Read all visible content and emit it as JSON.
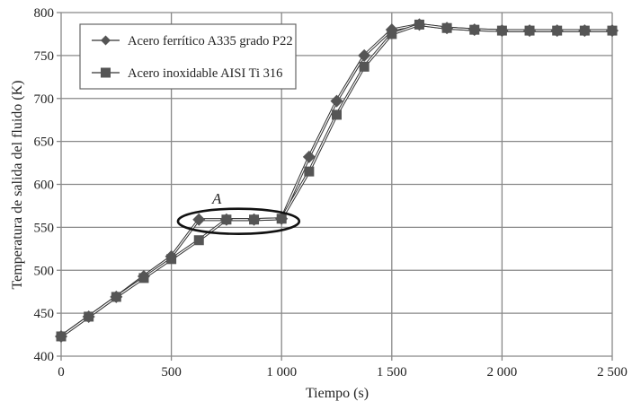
{
  "chart_data": {
    "type": "line",
    "title": "",
    "xlabel": "Tiempo (s)",
    "ylabel": "Temperatura de salida del fluido (K)",
    "xlim": [
      0,
      2500
    ],
    "ylim": [
      400,
      800
    ],
    "xticks": [
      0,
      500,
      1000,
      1500,
      2000,
      2500
    ],
    "xtick_labels": [
      "0",
      "500",
      "1 000",
      "1 500",
      "2 000",
      "2 500"
    ],
    "yticks": [
      400,
      450,
      500,
      550,
      600,
      650,
      700,
      750,
      800
    ],
    "ytick_labels": [
      "400",
      "450",
      "500",
      "550",
      "600",
      "650",
      "700",
      "750",
      "800"
    ],
    "grid": true,
    "legend_position": "upper left",
    "x": [
      0,
      125,
      250,
      375,
      500,
      625,
      750,
      875,
      1000,
      1125,
      1250,
      1375,
      1500,
      1625,
      1750,
      1875,
      2000,
      2125,
      2250,
      2375,
      2500
    ],
    "series": [
      {
        "name": "Acero ferrítico A335 grado P22",
        "marker": "diamond",
        "values": [
          423,
          446,
          469,
          493,
          516,
          559,
          559,
          559,
          560,
          632,
          697,
          750,
          780,
          786,
          782,
          780,
          779,
          779,
          779,
          779,
          779
        ]
      },
      {
        "name": "Acero inoxidable AISI Ti 316",
        "marker": "square",
        "values": [
          423,
          446,
          469,
          491,
          513,
          535,
          559,
          559,
          560,
          615,
          681,
          737,
          775,
          786,
          782,
          780,
          779,
          779,
          779,
          779,
          779
        ]
      }
    ],
    "annotations": [
      {
        "text": "A",
        "shape": "ellipse",
        "x_range": [
          530,
          1080
        ],
        "y_center": 557
      }
    ]
  },
  "legend": {
    "items": [
      {
        "label": "Acero ferrítico A335 grado P22"
      },
      {
        "label": "Acero inoxidable AISI Ti 316"
      }
    ]
  },
  "annotation_label": "A",
  "colors": {
    "series": "#555555",
    "grid": "#888888",
    "axis": "#777777",
    "ellipse": "#111111"
  }
}
